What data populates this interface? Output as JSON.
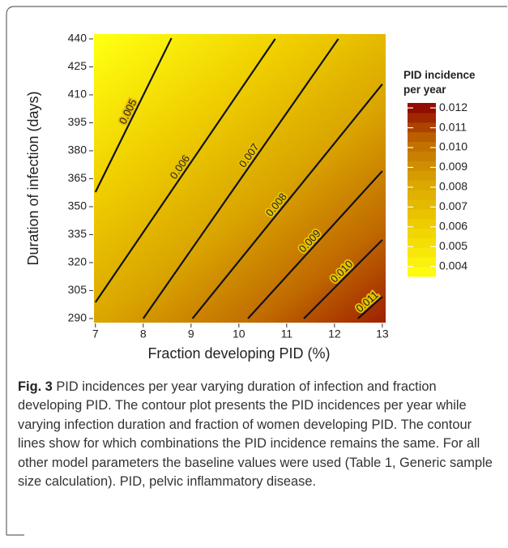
{
  "chart_data": {
    "type": "contour",
    "x_label": "Fraction developing PID (%)",
    "y_label": "Duration of infection (days)",
    "xlim": [
      6.97,
      13.07
    ],
    "xticks": [
      7,
      8,
      9,
      10,
      11,
      12,
      13
    ],
    "ylim": [
      287.8,
      442.6
    ],
    "yticks": [
      290,
      305,
      320,
      335,
      350,
      365,
      380,
      395,
      410,
      425,
      440
    ],
    "levels": [
      0.005,
      0.006,
      0.007,
      0.008,
      0.009,
      0.01,
      0.011
    ],
    "value_labels": [
      "0.005",
      "0.006",
      "0.007",
      "0.008",
      "0.009",
      "0.010",
      "0.011"
    ],
    "contours": [
      {
        "x": [
          7.0,
          8.59
        ],
        "y": [
          357.8,
          440.4
        ]
      },
      {
        "x": [
          7.0,
          10.76
        ],
        "y": [
          298.7,
          440.0
        ]
      },
      {
        "x": [
          8.0,
          12.08
        ],
        "y": [
          290.0,
          440.0
        ]
      },
      {
        "x": [
          9.03,
          13.0
        ],
        "y": [
          290.0,
          415.7
        ]
      },
      {
        "x": [
          10.19,
          13.0
        ],
        "y": [
          290.0,
          369.1
        ]
      },
      {
        "x": [
          11.36,
          13.0
        ],
        "y": [
          290.0,
          332.2
        ]
      },
      {
        "x": [
          12.49,
          13.0
        ],
        "y": [
          290.0,
          301.7
        ]
      }
    ],
    "colorbar": {
      "title": "PID incidence per year",
      "lim": [
        0.0035,
        0.01225
      ],
      "ticks": [
        0.004,
        0.005,
        0.006,
        0.007,
        0.008,
        0.009,
        {
          "value": 0.01,
          "label": "0.010"
        },
        0.011,
        0.012
      ]
    }
  },
  "caption": {
    "label": "Fig. 3",
    "text": "PID incidences per year varying duration of infection and fraction developing PID. The contour plot presents the PID incidences per year while varying infection duration and fraction of women developing PID. The contour lines show for which combinations the PID incidence remains the same. For all other model parameters the baseline values were used (Table 1, Generic sample size calculation). PID, pelvic inflammatory disease."
  }
}
